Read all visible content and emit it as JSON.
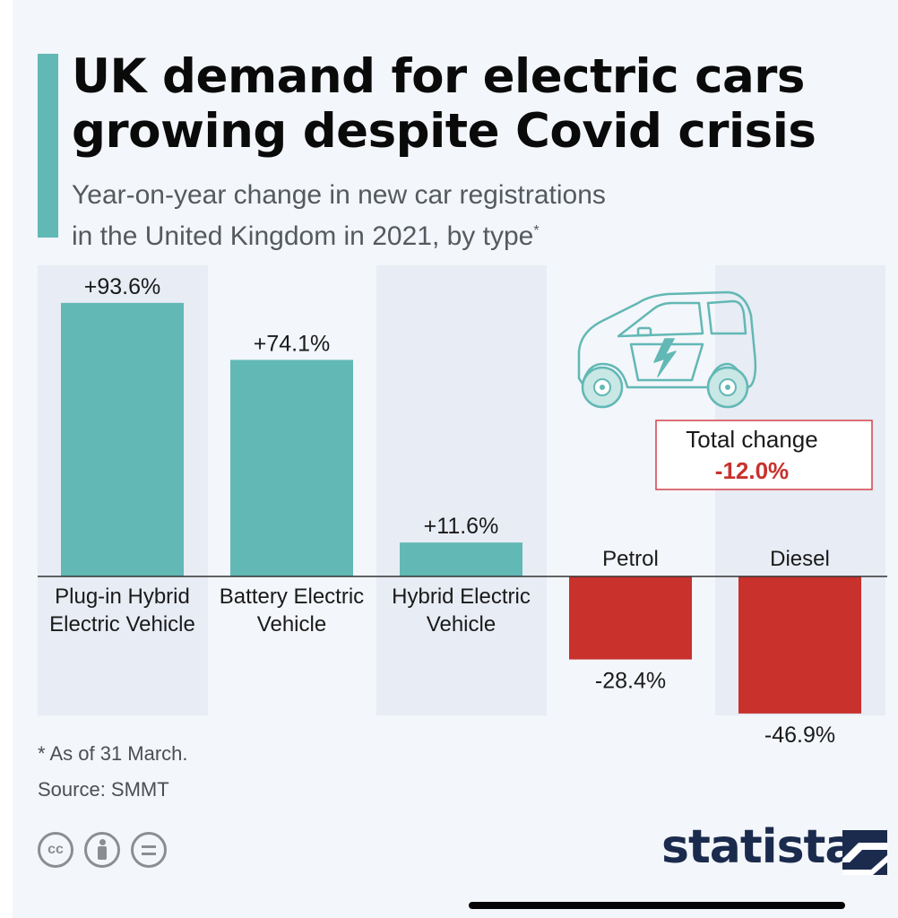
{
  "header": {
    "title": "UK demand for electric cars\ngrowing despite Covid crisis",
    "subtitle": "Year-on-year change in new car registrations\nin the United Kingdom in 2021, by type",
    "subtitle_marker": "*"
  },
  "chart_data": {
    "type": "bar",
    "categories": [
      "Plug-in Hybrid\nElectric Vehicle",
      "Battery Electric\nVehicle",
      "Hybrid Electric\nVehicle",
      "Petrol",
      "Diesel"
    ],
    "values": [
      93.6,
      74.1,
      11.6,
      -28.4,
      -46.9
    ],
    "value_labels": [
      "+93.6%",
      "+74.1%",
      "+11.6%",
      "-28.4%",
      "-46.9%"
    ],
    "colors": {
      "positive": "#62b8b5",
      "negative": "#c8312c",
      "band": "#e8ecf4"
    },
    "grid": false,
    "annotation": {
      "label": "Total change",
      "value": "-12.0%",
      "value_color": "#c8312c",
      "border_color": "#d2414a"
    }
  },
  "footer": {
    "footnote": "* As of 31 March.",
    "source": "Source: SMMT",
    "license_icons": [
      "cc-icon",
      "attribution-icon",
      "no-derivatives-icon"
    ],
    "cc_text": "cc",
    "brand": "statista"
  }
}
